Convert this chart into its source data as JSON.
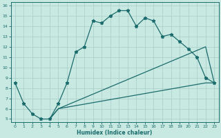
{
  "xlabel": "Humidex (Indice chaleur)",
  "xlim": [
    0,
    23
  ],
  "ylim": [
    5,
    16
  ],
  "xticks": [
    0,
    1,
    2,
    3,
    4,
    5,
    6,
    7,
    8,
    9,
    10,
    11,
    12,
    13,
    14,
    15,
    16,
    17,
    18,
    19,
    20,
    21,
    22,
    23
  ],
  "yticks": [
    5,
    6,
    7,
    8,
    9,
    10,
    11,
    12,
    13,
    14,
    15,
    16
  ],
  "bg_color": "#c8e8e2",
  "line_color": "#1a6b6b",
  "grid_color": "#a8ccc8",
  "curve1_x": [
    0,
    1,
    2,
    3,
    4,
    5,
    6,
    7,
    8,
    9,
    10,
    11,
    12,
    13,
    14,
    15,
    16,
    17,
    18,
    19,
    20,
    21,
    22,
    23
  ],
  "curve1_y": [
    8.5,
    6.5,
    5.5,
    5.0,
    5.0,
    6.5,
    8.5,
    11.5,
    12.0,
    14.5,
    14.3,
    15.0,
    15.5,
    15.5,
    14.0,
    14.8,
    14.5,
    13.0,
    13.2,
    12.5,
    11.8,
    11.0,
    9.0,
    8.5
  ],
  "curve2_x": [
    4,
    5,
    22,
    23
  ],
  "curve2_y": [
    5.0,
    6.0,
    12.0,
    8.5
  ],
  "curve3_x": [
    4,
    5,
    22,
    23
  ],
  "curve3_y": [
    5.0,
    6.0,
    8.5,
    8.5
  ]
}
